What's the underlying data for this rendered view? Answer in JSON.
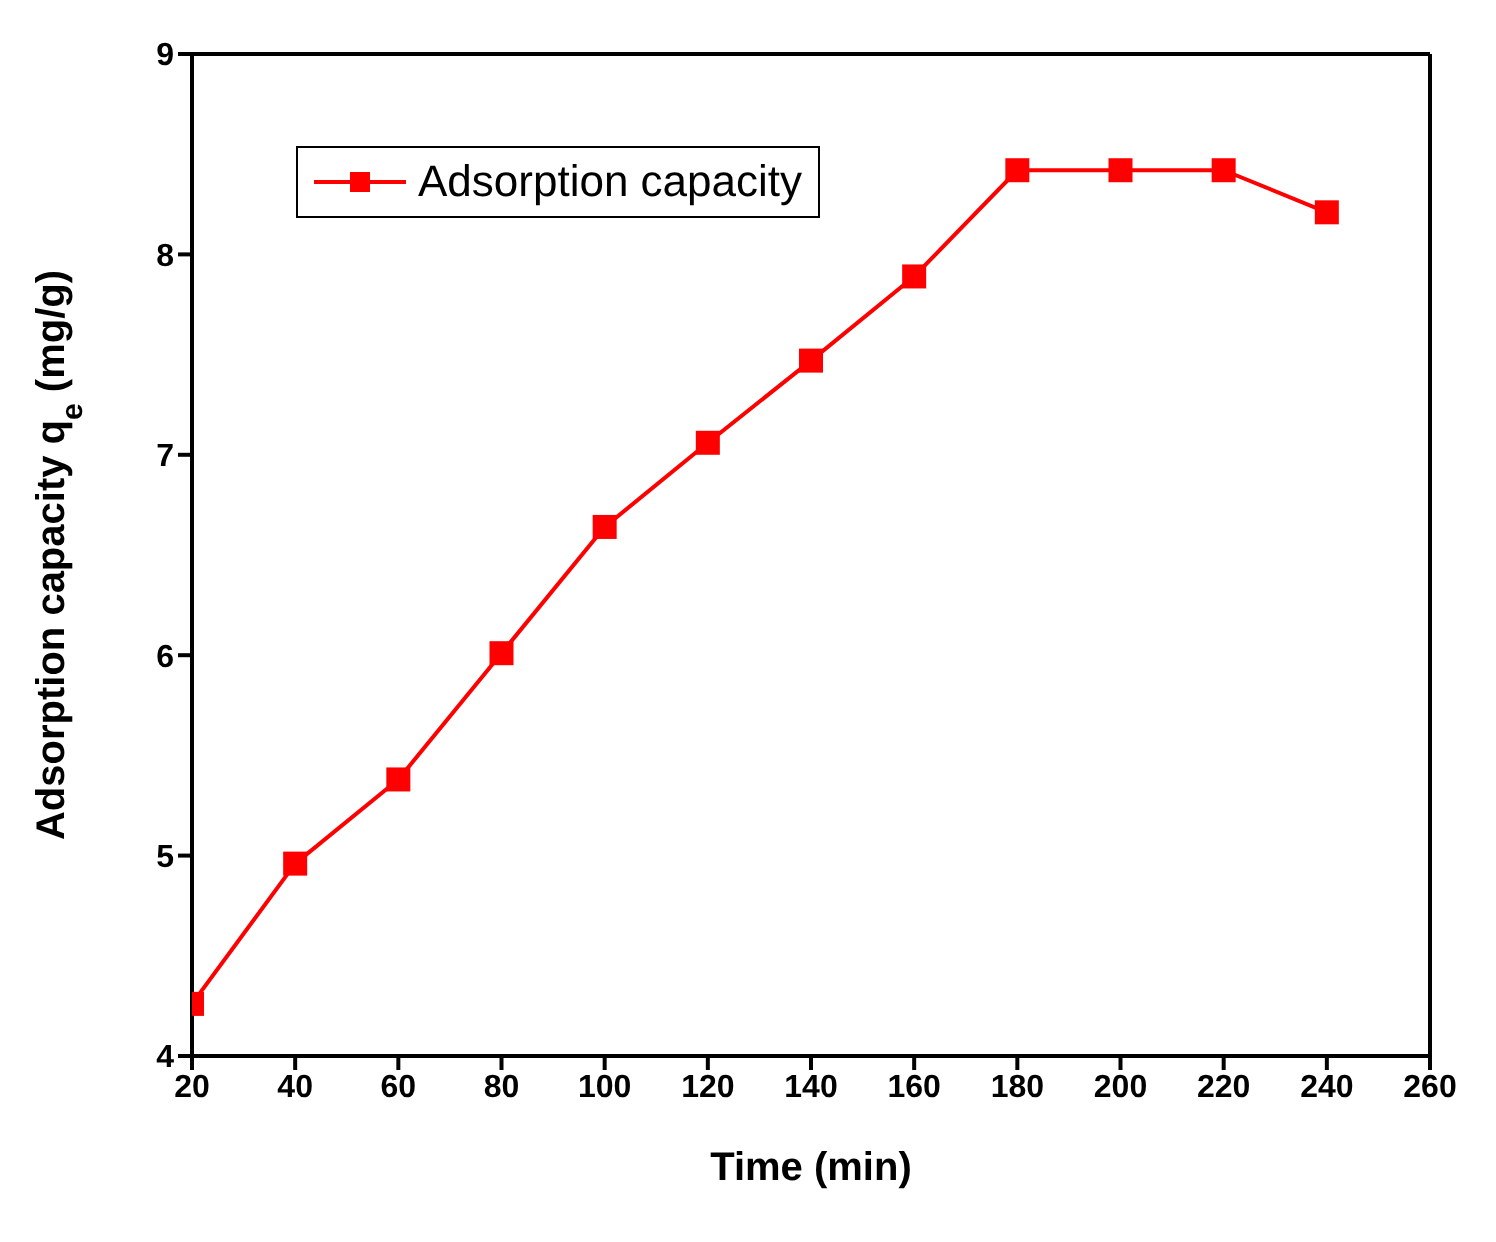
{
  "chart_data": {
    "type": "line",
    "xlabel": "Time (min)",
    "ylabel": "Adsorption capacity  q$_{e}$ (mg/g)",
    "x": [
      20,
      40,
      60,
      80,
      100,
      120,
      140,
      160,
      180,
      200,
      220,
      240
    ],
    "series": [
      {
        "name": "Adsorption capacity",
        "color": "#ff0000",
        "values": [
          4.26,
          4.96,
          5.38,
          6.01,
          6.64,
          7.06,
          7.47,
          7.89,
          8.42,
          8.42,
          8.42,
          8.21
        ]
      }
    ],
    "xlim": [
      20,
      260
    ],
    "xticks": [
      20,
      40,
      60,
      80,
      100,
      120,
      140,
      160,
      180,
      200,
      220,
      240,
      260
    ],
    "ylim": [
      4,
      9
    ],
    "yticks": [
      4,
      5,
      6,
      7,
      8,
      9
    ],
    "grid": false,
    "legend": "top left",
    "marker": "square",
    "line_style": "solid"
  }
}
